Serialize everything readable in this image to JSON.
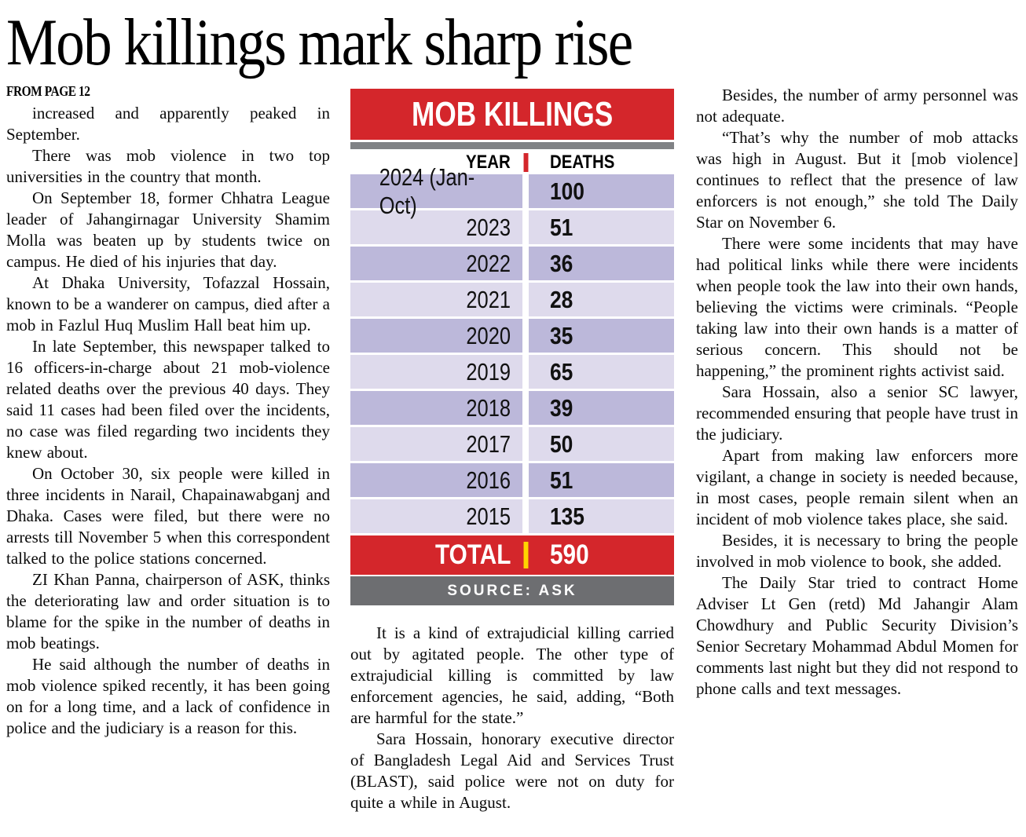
{
  "headline": "Mob killings mark sharp rise",
  "kicker": "FROM PAGE 12",
  "columns": {
    "col1": [
      "increased and apparently peaked in September.",
      "There was mob violence in two top universities in the country that month.",
      "On September 18, former Chhatra League leader of Jahangirnagar University Shamim Molla was beaten up by students twice on campus. He died of his injuries that day.",
      "At Dhaka University, Tofazzal Hossain, known to be a wanderer on campus, died after a mob in Fazlul Huq Muslim Hall beat him up.",
      "In late September, this newspaper talked to 16 officers-in-charge about 21 mob-violence related deaths over the previous 40 days. They said 11 cases had been filed over the incidents, no case was filed regarding two incidents they knew about.",
      "On October 30, six people were killed in three incidents in Narail, Chapainawabganj and Dhaka. Cases were filed, but there were no arrests till November 5 when this correspondent talked to the police stations concerned.",
      "ZI Khan Panna, chairperson of ASK, thinks the deteriorating law and order situation is to blame for the spike in the number of deaths in mob beatings.",
      "He said although the number of deaths in mob violence spiked recently, it has been going on for a long time, and a lack of confidence in police and the judiciary is a reason for this."
    ],
    "col2": [
      "It is a kind of extrajudicial killing carried out by agitated people. The other type of extrajudicial killing is committed by law enforcement agencies, he said, adding, “Both are harmful for the state.”",
      "Sara Hossain, honorary executive director of Bangladesh Legal Aid and Services Trust (BLAST), said police were not on duty for quite a while in August."
    ],
    "col3": [
      "Besides, the number of army personnel was not adequate.",
      "“That’s why the number of mob attacks was high in August. But it [mob violence] continues to reflect that the presence of law enforcers is not enough,” she told The Daily Star on November 6.",
      "There were some incidents that may have had political links while there were incidents when people took the law into their own hands, believing the victims were criminals. “People taking law into their own hands is a matter of serious concern. This should not be happening,” the prominent rights activist said.",
      "Sara Hossain, also a senior SC lawyer, recommended ensuring that people have trust in the judiciary.",
      "Apart from making law enforcers more vigilant, a change in society is needed because, in most cases, people remain silent when an incident of mob violence takes place, she said.",
      "Besides, it is necessary to bring the people involved in mob violence to book, she added.",
      "The Daily Star tried to contract Home Adviser Lt Gen (retd) Md Jahangir Alam Chowdhury and Public Security Division’s Senior Secretary Mohammad Abdul Momen for comments last night but they did not respond to phone calls and text messages."
    ]
  },
  "infographic": {
    "title": "MOB KILLINGS",
    "col_year": "YEAR",
    "col_deaths": "DEATHS",
    "rows": [
      {
        "year": "2024 (Jan-Oct)",
        "deaths": "100",
        "shade": "dark"
      },
      {
        "year": "2023",
        "deaths": "51",
        "shade": "light"
      },
      {
        "year": "2022",
        "deaths": "36",
        "shade": "dark"
      },
      {
        "year": "2021",
        "deaths": "28",
        "shade": "light"
      },
      {
        "year": "2020",
        "deaths": "35",
        "shade": "dark"
      },
      {
        "year": "2019",
        "deaths": "65",
        "shade": "light"
      },
      {
        "year": "2018",
        "deaths": "39",
        "shade": "dark"
      },
      {
        "year": "2017",
        "deaths": "50",
        "shade": "light"
      },
      {
        "year": "2016",
        "deaths": "51",
        "shade": "dark"
      },
      {
        "year": "2015",
        "deaths": "135",
        "shade": "light"
      }
    ],
    "total_label": "TOTAL",
    "total_value": "590",
    "source": "SOURCE: ASK",
    "colors": {
      "red": "#d4262b",
      "yellow": "#ffd400",
      "row_dark": "#bcb8da",
      "row_light": "#dedaec",
      "strip_gray": "#808285",
      "source_gray": "#6d6e71"
    }
  },
  "chart_data": {
    "type": "table",
    "title": "MOB KILLINGS",
    "columns": [
      "YEAR",
      "DEATHS"
    ],
    "rows": [
      [
        "2024 (Jan-Oct)",
        100
      ],
      [
        "2023",
        51
      ],
      [
        "2022",
        36
      ],
      [
        "2021",
        28
      ],
      [
        "2020",
        35
      ],
      [
        "2019",
        65
      ],
      [
        "2018",
        39
      ],
      [
        "2017",
        50
      ],
      [
        "2016",
        51
      ],
      [
        "2015",
        135
      ]
    ],
    "total": 590,
    "source": "SOURCE: ASK"
  }
}
